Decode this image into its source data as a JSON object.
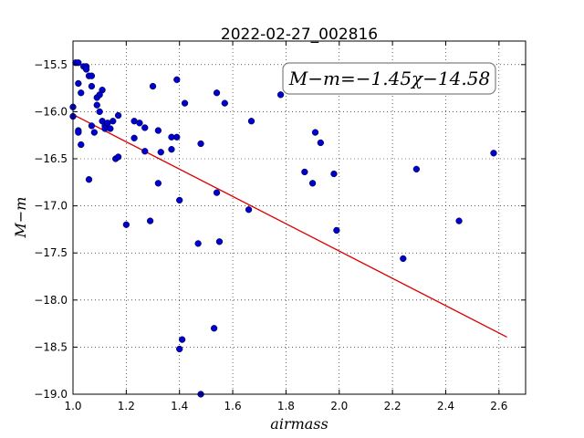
{
  "chart_data": {
    "type": "scatter",
    "title": "2022-02-27_002816",
    "xlabel": "airmass",
    "ylabel": "M−m",
    "annotation": "M−m=−1.45χ−14.58",
    "xlim": [
      1.0,
      2.7
    ],
    "ylim": [
      -19.0,
      -15.25
    ],
    "y_inverted": true,
    "grid": true,
    "x_ticks": [
      "1.0",
      "1.2",
      "1.4",
      "1.6",
      "1.8",
      "2.0",
      "2.2",
      "2.4",
      "2.6"
    ],
    "y_ticks": [
      "−15.5",
      "−16.0",
      "−16.5",
      "−17.0",
      "−17.5",
      "−18.0",
      "−18.5",
      "−19.0"
    ],
    "point_color": "#0000cc",
    "fit_color": "#dd0000",
    "fit": {
      "slope": -1.45,
      "intercept": -14.58,
      "x_range": [
        1.0,
        2.63
      ]
    },
    "points": [
      [
        1.0,
        -15.95
      ],
      [
        1.0,
        -16.05
      ],
      [
        1.01,
        -15.48
      ],
      [
        1.02,
        -15.48
      ],
      [
        1.02,
        -16.2
      ],
      [
        1.02,
        -16.22
      ],
      [
        1.02,
        -15.7
      ],
      [
        1.03,
        -15.8
      ],
      [
        1.03,
        -16.35
      ],
      [
        1.04,
        -15.52
      ],
      [
        1.05,
        -15.52
      ],
      [
        1.05,
        -15.55
      ],
      [
        1.06,
        -15.62
      ],
      [
        1.07,
        -15.62
      ],
      [
        1.06,
        -16.72
      ],
      [
        1.07,
        -15.73
      ],
      [
        1.07,
        -16.15
      ],
      [
        1.08,
        -16.22
      ],
      [
        1.09,
        -15.85
      ],
      [
        1.09,
        -15.93
      ],
      [
        1.1,
        -16.0
      ],
      [
        1.1,
        -15.82
      ],
      [
        1.11,
        -15.77
      ],
      [
        1.11,
        -16.1
      ],
      [
        1.12,
        -16.15
      ],
      [
        1.12,
        -16.18
      ],
      [
        1.13,
        -16.12
      ],
      [
        1.14,
        -16.18
      ],
      [
        1.15,
        -16.1
      ],
      [
        1.16,
        -16.5
      ],
      [
        1.17,
        -16.48
      ],
      [
        1.17,
        -16.04
      ],
      [
        1.2,
        -17.2
      ],
      [
        1.23,
        -16.28
      ],
      [
        1.23,
        -16.1
      ],
      [
        1.25,
        -16.12
      ],
      [
        1.27,
        -16.17
      ],
      [
        1.27,
        -16.42
      ],
      [
        1.29,
        -17.16
      ],
      [
        1.3,
        -15.73
      ],
      [
        1.32,
        -16.2
      ],
      [
        1.32,
        -16.76
      ],
      [
        1.33,
        -16.43
      ],
      [
        1.37,
        -16.27
      ],
      [
        1.37,
        -16.4
      ],
      [
        1.39,
        -15.66
      ],
      [
        1.39,
        -16.27
      ],
      [
        1.4,
        -16.94
      ],
      [
        1.4,
        -18.52
      ],
      [
        1.41,
        -18.42
      ],
      [
        1.42,
        -15.91
      ],
      [
        1.47,
        -17.4
      ],
      [
        1.48,
        -16.34
      ],
      [
        1.48,
        -19.0
      ],
      [
        1.53,
        -18.3
      ],
      [
        1.54,
        -15.8
      ],
      [
        1.54,
        -16.86
      ],
      [
        1.55,
        -17.38
      ],
      [
        1.57,
        -15.91
      ],
      [
        1.66,
        -17.04
      ],
      [
        1.67,
        -16.1
      ],
      [
        1.78,
        -15.82
      ],
      [
        1.87,
        -16.64
      ],
      [
        1.9,
        -16.76
      ],
      [
        1.91,
        -16.22
      ],
      [
        1.93,
        -16.33
      ],
      [
        1.98,
        -16.66
      ],
      [
        1.99,
        -17.26
      ],
      [
        2.24,
        -17.56
      ],
      [
        2.29,
        -16.61
      ],
      [
        2.45,
        -17.16
      ],
      [
        2.58,
        -16.44
      ]
    ]
  }
}
